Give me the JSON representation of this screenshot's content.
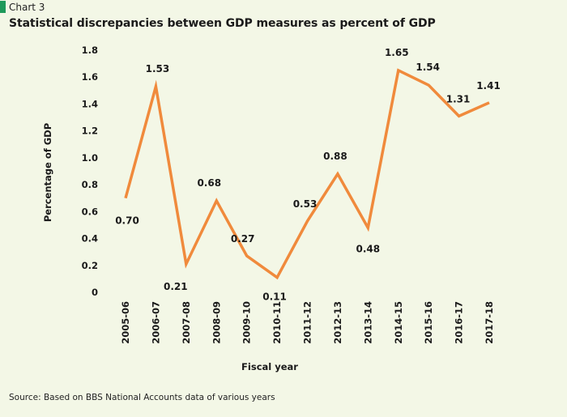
{
  "header": {
    "chart_number": "Chart 3",
    "title": "Statistical discrepancies between GDP measures as percent of GDP"
  },
  "source": "Source: Based on BBS National Accounts data of various years",
  "colors": {
    "line": "#f08a3c",
    "accent_bar": "#1e9a5a",
    "background": "#f3f7e6"
  },
  "chart_data": {
    "type": "line",
    "title": "Statistical discrepancies between GDP measures as percent of GDP",
    "xlabel": "Fiscal year",
    "ylabel": "Percentage of GDP",
    "ylim": [
      0,
      1.8
    ],
    "yticks": [
      "0",
      "0.2",
      "0.4",
      "0.6",
      "0.8",
      "1.0",
      "1.2",
      "1.4",
      "1.6",
      "1.8"
    ],
    "grid": false,
    "categories": [
      "2005-06",
      "2006-07",
      "2007-08",
      "2008-09",
      "2009-10",
      "2010-11",
      "2011-12",
      "2012-13",
      "2013-14",
      "2014-15",
      "2015-16",
      "2016-17",
      "2017-18"
    ],
    "series": [
      {
        "values": [
          0.7,
          1.53,
          0.21,
          0.68,
          0.27,
          0.11,
          0.53,
          0.88,
          0.48,
          1.65,
          1.54,
          1.31,
          1.41
        ],
        "labels": [
          "0.70",
          "1.53",
          "0.21",
          "0.68",
          "0.27",
          "0.11",
          "0.53",
          "0.88",
          "0.48",
          "1.65",
          "1.54",
          "1.31",
          "1.41"
        ]
      }
    ]
  }
}
